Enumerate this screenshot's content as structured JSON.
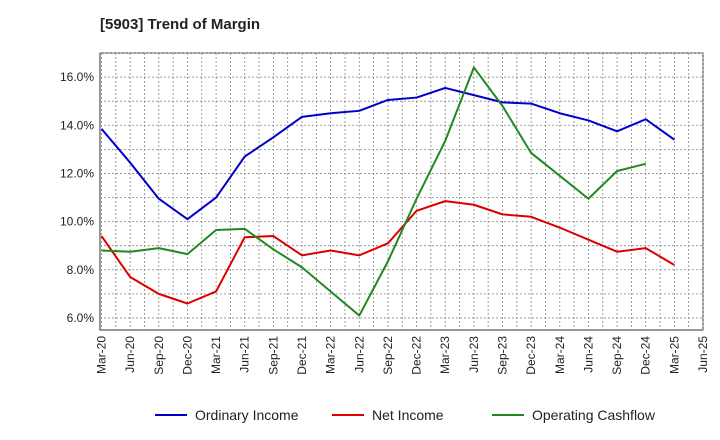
{
  "chart_data": {
    "type": "line",
    "title": "[5903]  Trend of Margin",
    "xlabel": "",
    "ylabel": "",
    "x": [
      "Mar-20",
      "Jun-20",
      "Sep-20",
      "Dec-20",
      "Mar-21",
      "Jun-21",
      "Sep-21",
      "Dec-21",
      "Mar-22",
      "Jun-22",
      "Sep-22",
      "Dec-22",
      "Mar-23",
      "Jun-23",
      "Sep-23",
      "Dec-23",
      "Mar-24",
      "Jun-24",
      "Sep-24",
      "Dec-24",
      "Mar-25",
      "Jun-25"
    ],
    "ylim": [
      5.5,
      17.0
    ],
    "yticks": [
      6.0,
      8.0,
      10.0,
      12.0,
      14.0,
      16.0
    ],
    "ytick_labels": [
      "6.0%",
      "8.0%",
      "10.0%",
      "12.0%",
      "14.0%",
      "16.0%"
    ],
    "grid": true,
    "legend_position": "bottom",
    "series": [
      {
        "name": "Ordinary Income",
        "color": "#0000cc",
        "values": [
          13.85,
          12.45,
          10.95,
          10.1,
          11.0,
          12.7,
          13.5,
          14.35,
          14.5,
          14.6,
          15.05,
          15.15,
          15.55,
          15.25,
          14.95,
          14.9,
          14.5,
          14.2,
          13.75,
          14.25,
          13.4,
          null
        ]
      },
      {
        "name": "Net Income",
        "color": "#dd0000",
        "values": [
          9.4,
          7.7,
          7.0,
          6.6,
          7.1,
          9.35,
          9.4,
          8.6,
          8.8,
          8.6,
          9.1,
          10.45,
          10.85,
          10.7,
          10.3,
          10.2,
          9.75,
          9.25,
          8.75,
          8.9,
          8.2,
          null
        ]
      },
      {
        "name": "Operating Cashflow",
        "color": "#228822",
        "values": [
          8.8,
          8.75,
          8.9,
          8.65,
          9.65,
          9.7,
          8.85,
          8.1,
          7.1,
          6.1,
          8.35,
          10.95,
          13.35,
          16.4,
          14.8,
          12.85,
          11.9,
          10.95,
          12.1,
          12.4,
          null,
          null
        ]
      }
    ]
  }
}
